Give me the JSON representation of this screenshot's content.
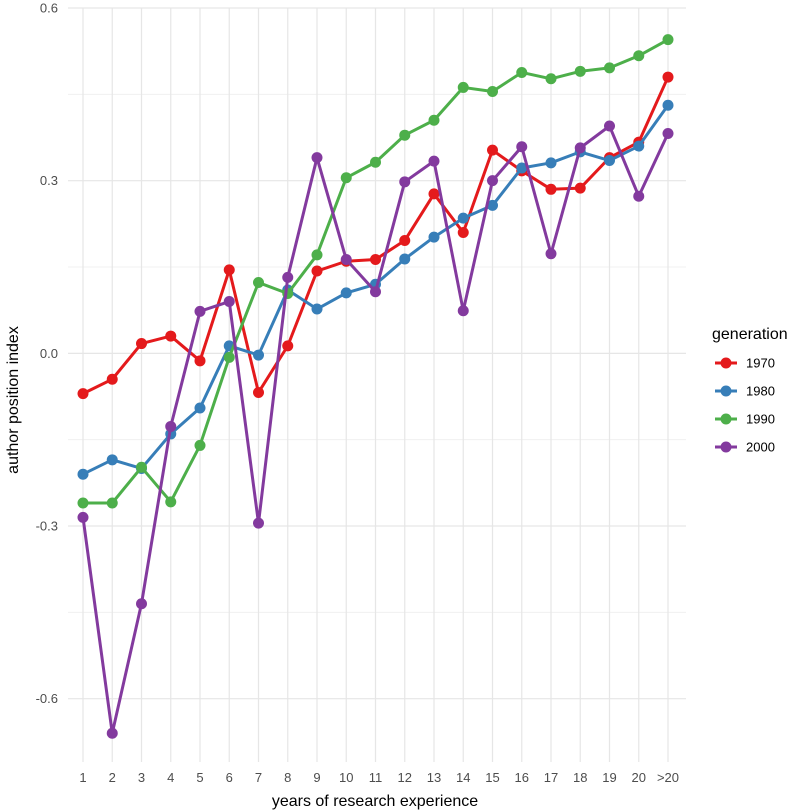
{
  "chart_data": {
    "type": "line",
    "title": "",
    "xlabel": "years of research experience",
    "ylabel": "author position index",
    "categories": [
      "1",
      "2",
      "3",
      "4",
      "5",
      "6",
      "7",
      "8",
      "9",
      "10",
      "11",
      "12",
      "13",
      "14",
      "15",
      "16",
      "17",
      "18",
      "19",
      "20",
      ">20"
    ],
    "ylim": [
      -0.71,
      0.6
    ],
    "yticks": [
      -0.6,
      -0.3,
      0.0,
      0.3,
      0.6
    ],
    "ytick_labels": [
      "-0.6",
      "-0.3",
      "0.0",
      "0.3",
      "0.6"
    ],
    "grid": true,
    "legend": {
      "title": "generation",
      "position": "right"
    },
    "series": [
      {
        "name": "1970",
        "color": "#e41a1c",
        "values": [
          -0.07,
          -0.045,
          0.017,
          0.03,
          -0.013,
          0.145,
          -0.068,
          0.013,
          0.143,
          0.16,
          0.163,
          0.196,
          0.277,
          0.21,
          0.353,
          0.317,
          0.285,
          0.287,
          0.34,
          0.367,
          0.48
        ]
      },
      {
        "name": "1980",
        "color": "#377eb8",
        "values": [
          -0.21,
          -0.185,
          -0.2,
          -0.14,
          -0.095,
          0.013,
          -0.003,
          0.11,
          0.077,
          0.105,
          0.12,
          0.164,
          0.202,
          0.235,
          0.257,
          0.322,
          0.331,
          0.35,
          0.335,
          0.36,
          0.431
        ]
      },
      {
        "name": "1990",
        "color": "#4daf4a",
        "values": [
          -0.26,
          -0.26,
          -0.198,
          -0.258,
          -0.16,
          -0.007,
          0.123,
          0.104,
          0.171,
          0.305,
          0.332,
          0.379,
          0.405,
          0.462,
          0.455,
          0.488,
          0.477,
          0.49,
          0.496,
          0.517,
          0.545
        ]
      },
      {
        "name": "2000",
        "color": "#833a9e",
        "values": [
          -0.285,
          -0.66,
          -0.435,
          -0.127,
          0.073,
          0.09,
          -0.295,
          0.132,
          0.34,
          0.163,
          0.107,
          0.298,
          0.334,
          0.074,
          0.3,
          0.359,
          0.173,
          0.357,
          0.395,
          0.273,
          0.382
        ]
      }
    ]
  }
}
